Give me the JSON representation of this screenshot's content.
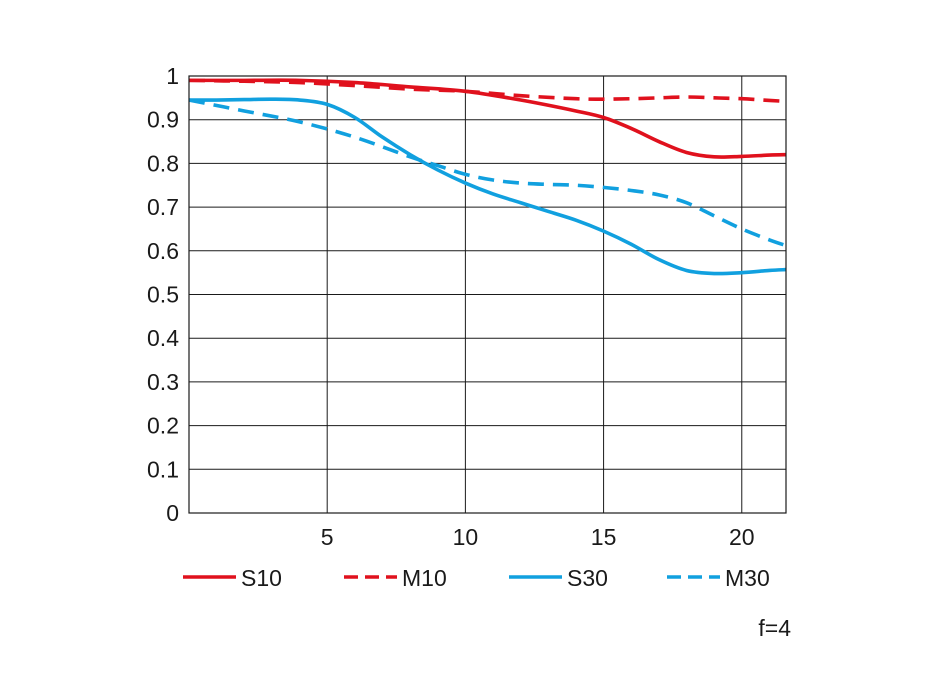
{
  "chart_data": {
    "type": "line",
    "title": "",
    "xlabel": "",
    "ylabel": "",
    "xlim": [
      0,
      21.6
    ],
    "ylim": [
      0,
      1
    ],
    "x_ticks": [
      5,
      10,
      15,
      20
    ],
    "x_tick_labels": [
      "5",
      "10",
      "15",
      "20"
    ],
    "y_ticks": [
      0,
      0.1,
      0.2,
      0.3,
      0.4,
      0.5,
      0.6,
      0.7,
      0.8,
      0.9,
      1
    ],
    "y_tick_labels": [
      "0",
      "0.1",
      "0.2",
      "0.3",
      "0.4",
      "0.5",
      "0.6",
      "0.7",
      "0.8",
      "0.9",
      "1"
    ],
    "grid": true,
    "note": "f=4",
    "series": [
      {
        "name": "S10",
        "color": "#e0111d",
        "dash": "solid",
        "x": [
          0,
          2,
          4,
          6,
          8,
          10,
          12,
          14,
          15,
          16,
          17,
          18,
          19,
          20,
          21,
          21.6
        ],
        "y": [
          0.99,
          0.99,
          0.99,
          0.985,
          0.975,
          0.965,
          0.945,
          0.92,
          0.905,
          0.88,
          0.85,
          0.825,
          0.815,
          0.816,
          0.819,
          0.82
        ]
      },
      {
        "name": "M10",
        "color": "#e0111d",
        "dash": "dashed",
        "x": [
          0,
          2,
          4,
          6,
          8,
          10,
          12,
          14,
          15,
          16,
          17,
          18,
          19,
          20,
          21,
          21.6
        ],
        "y": [
          0.99,
          0.988,
          0.985,
          0.978,
          0.97,
          0.965,
          0.955,
          0.948,
          0.947,
          0.948,
          0.95,
          0.952,
          0.95,
          0.948,
          0.944,
          0.942
        ]
      },
      {
        "name": "S30",
        "color": "#11a0df",
        "dash": "solid",
        "x": [
          0,
          1,
          2,
          3,
          4,
          5,
          6,
          7,
          8,
          9,
          10,
          11,
          12,
          13,
          14,
          15,
          16,
          17,
          18,
          19,
          20,
          21,
          21.6
        ],
        "y": [
          0.945,
          0.945,
          0.946,
          0.947,
          0.945,
          0.935,
          0.905,
          0.86,
          0.82,
          0.785,
          0.755,
          0.73,
          0.71,
          0.69,
          0.67,
          0.645,
          0.615,
          0.58,
          0.555,
          0.548,
          0.55,
          0.555,
          0.557
        ]
      },
      {
        "name": "M30",
        "color": "#11a0df",
        "dash": "dashed",
        "x": [
          0,
          2,
          4,
          6,
          8,
          9,
          10,
          11,
          12,
          13,
          14,
          15,
          16,
          17,
          18,
          19,
          20,
          21,
          21.6
        ],
        "y": [
          0.945,
          0.92,
          0.895,
          0.86,
          0.815,
          0.795,
          0.775,
          0.762,
          0.755,
          0.752,
          0.75,
          0.745,
          0.738,
          0.728,
          0.71,
          0.68,
          0.65,
          0.625,
          0.612
        ]
      }
    ]
  }
}
